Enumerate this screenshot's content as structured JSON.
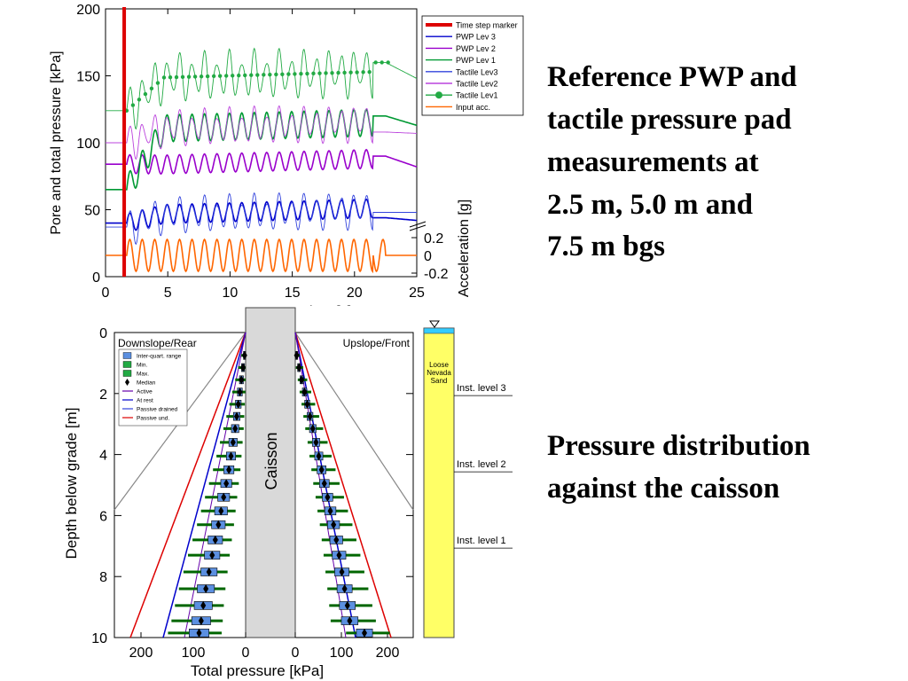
{
  "slide": {
    "text_top": [
      "Reference PWP and",
      "tactile pressure pad",
      "measurements at",
      "2.5 m, 5.0 m and",
      "7.5 m bgs"
    ],
    "text_bottom": [
      "Pressure distribution",
      "against the caisson"
    ]
  },
  "chart_data": [
    {
      "type": "line",
      "xlabel": "Time [s]",
      "ylabel": "Pore and total pressure [kPa]",
      "ylabel_right": "Acceleration [g]",
      "xlim": [
        0,
        25
      ],
      "ylim": [
        0,
        200
      ],
      "xticks": [
        "0",
        "5",
        "10",
        "15",
        "20",
        "25"
      ],
      "yticks": [
        "0",
        "50",
        "100",
        "150",
        "200"
      ],
      "acc_ticks": [
        "0.2",
        "0",
        "-0.2"
      ],
      "time_step_marker": 1.5,
      "legend": [
        "Time step marker",
        "PWP Lev 3",
        "PWP Lev 2",
        "PWP Lev 1",
        "Tactile Lev3",
        "Tactile Lev2",
        "Tactile Lev1",
        "Input acc."
      ],
      "series": [
        {
          "name": "PWP Lev 3",
          "color": "#0000cc",
          "pre": 40,
          "base": 46,
          "amp": 7,
          "post": 44,
          "end": 42
        },
        {
          "name": "PWP Lev 2",
          "color": "#9900cc",
          "pre": 84,
          "base": 83,
          "amp": 7,
          "post": 90,
          "end": 82
        },
        {
          "name": "PWP Lev 1",
          "color": "#009933",
          "pre": 65,
          "base": 110,
          "amp": 10,
          "post": 120,
          "end": 113
        },
        {
          "name": "Tactile Lev3",
          "color": "#3344dd",
          "pre": 37,
          "base": 45,
          "amp": 15,
          "post": 48,
          "end": 48
        },
        {
          "name": "Tactile Lev2",
          "color": "#bb44dd",
          "pre": 100,
          "base": 110,
          "amp": 15,
          "post": 108,
          "end": 107
        },
        {
          "name": "Tactile Lev1",
          "color": "#22aa44",
          "pre": 124,
          "base": 148,
          "amp": 20,
          "post": 160,
          "end": 148
        },
        {
          "name": "Input acc.",
          "color": "#ff6600",
          "pre": 0,
          "base": 0,
          "amp": 0.18,
          "post": 0,
          "end": 0
        }
      ]
    },
    {
      "type": "box",
      "xlabel": "Total pressure [kPa]",
      "ylabel": "Depth below grade [m]",
      "ylim": [
        0,
        10
      ],
      "yticks": [
        "0",
        "2",
        "4",
        "6",
        "8",
        "10"
      ],
      "left_xticks": [
        "200",
        "100",
        "0"
      ],
      "right_xticks": [
        "0",
        "100",
        "200"
      ],
      "left_title": "Downslope/Rear",
      "right_title": "Upslope/Front",
      "caisson_label": "Caisson",
      "legend": [
        "Inter-quart. range",
        "Min.",
        "Max.",
        "Median",
        "Active",
        "At rest",
        "Passive drained",
        "Passive und."
      ],
      "soil_label": [
        "Loose",
        "Nevada",
        "Sand"
      ],
      "inst_levels": [
        {
          "label": "Inst. level 3",
          "depth": 2.3
        },
        {
          "label": "Inst. level 2",
          "depth": 4.8
        },
        {
          "label": "Inst. level 1",
          "depth": 7.3
        }
      ],
      "depths": [
        0.75,
        1.15,
        1.55,
        1.95,
        2.35,
        2.75,
        3.15,
        3.6,
        4.05,
        4.5,
        4.95,
        5.4,
        5.85,
        6.3,
        6.8,
        7.3,
        7.85,
        8.4,
        8.95,
        9.45,
        9.85
      ],
      "left_median": [
        2,
        5,
        8,
        11,
        14,
        17,
        20,
        24,
        28,
        32,
        37,
        42,
        47,
        52,
        58,
        64,
        70,
        76,
        81,
        85,
        89
      ],
      "right_median": [
        3,
        8,
        14,
        20,
        26,
        32,
        38,
        45,
        51,
        57,
        63,
        70,
        76,
        83,
        89,
        95,
        101,
        107,
        113,
        118,
        150
      ]
    }
  ]
}
